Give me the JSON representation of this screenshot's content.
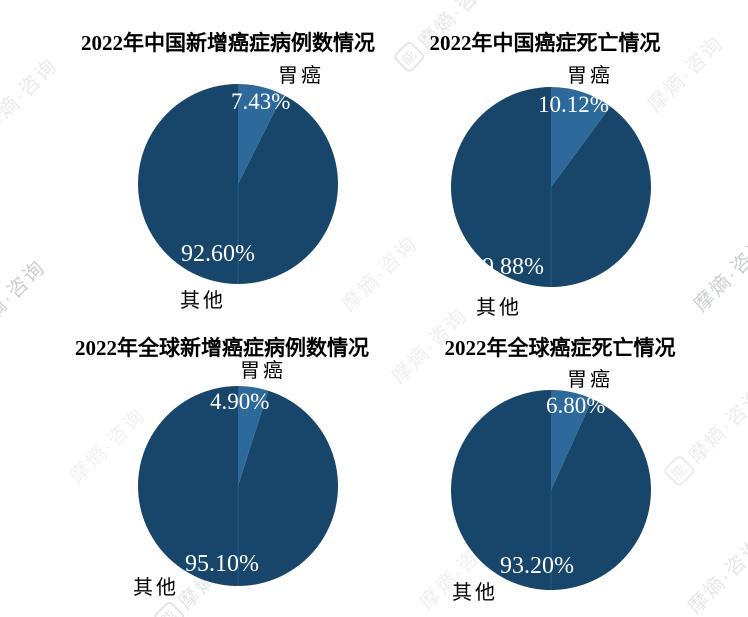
{
  "watermark": {
    "text": "摩熵·咨询",
    "logo_char": "能"
  },
  "colors": {
    "pie_dark": "#17466a",
    "pie_light": "#2d6a9b",
    "callout_bg": "#2d6a9b",
    "callout_text": "#ffffff",
    "inside_label_text": "#ffffff",
    "title_text": "#000000"
  },
  "chart_data": [
    {
      "type": "pie",
      "title": "2022年中国新增癌症病例数情况",
      "labels": [
        "胃癌",
        "其他"
      ],
      "values": [
        7.43,
        92.6
      ],
      "value_labels": [
        "7.43%",
        "92.60%"
      ],
      "colors": [
        "#2d6a9b",
        "#17466a"
      ],
      "start_angle_deg": 0,
      "direction": "clockwise",
      "legend": "none"
    },
    {
      "type": "pie",
      "title": "2022年中国癌症死亡情况",
      "labels": [
        "胃癌",
        "其他"
      ],
      "values": [
        10.12,
        89.88
      ],
      "value_labels": [
        "10.12%",
        "89.88%"
      ],
      "colors": [
        "#2d6a9b",
        "#17466a"
      ],
      "start_angle_deg": 0,
      "direction": "clockwise",
      "legend": "none"
    },
    {
      "type": "pie",
      "title": "2022年全球新增癌症病例数情况",
      "labels": [
        "胃癌",
        "其他"
      ],
      "values": [
        4.9,
        95.1
      ],
      "value_labels": [
        "4.90%",
        "95.10%"
      ],
      "colors": [
        "#2d6a9b",
        "#17466a"
      ],
      "start_angle_deg": 0,
      "direction": "clockwise",
      "legend": "none"
    },
    {
      "type": "pie",
      "title": "2022年全球癌症死亡情况",
      "labels": [
        "胃癌",
        "其他"
      ],
      "values": [
        6.8,
        93.2
      ],
      "value_labels": [
        "6.80%",
        "93.20%"
      ],
      "colors": [
        "#2d6a9b",
        "#17466a"
      ],
      "start_angle_deg": 0,
      "direction": "clockwise",
      "legend": "none"
    }
  ]
}
